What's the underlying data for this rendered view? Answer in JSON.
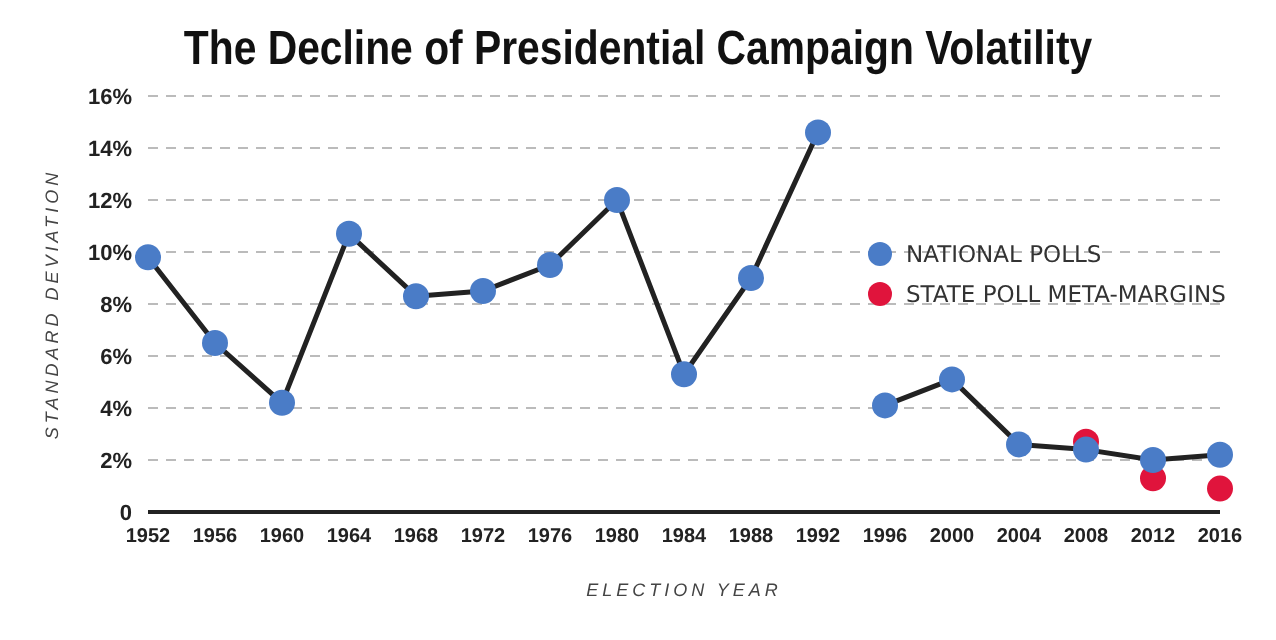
{
  "chart_data": {
    "type": "line",
    "title": "The Decline of Presidential Campaign Volatility",
    "xlabel": "ELECTION YEAR",
    "ylabel": "STANDARD DEVIATION",
    "categories": [
      "1952",
      "1956",
      "1960",
      "1964",
      "1968",
      "1972",
      "1976",
      "1980",
      "1984",
      "1988",
      "1992",
      "1996",
      "2000",
      "2004",
      "2008",
      "2012",
      "2016"
    ],
    "series": [
      {
        "name": "NATIONAL POLLS",
        "color": "#4a7cc7",
        "values": [
          9.8,
          6.5,
          4.2,
          10.7,
          8.3,
          8.5,
          9.5,
          12.0,
          5.3,
          9.0,
          14.6,
          null,
          null,
          null,
          null,
          null,
          null
        ]
      },
      {
        "name": "STATE POLL META-MARGINS",
        "type": "scatter",
        "color": "#e0143c",
        "values": [
          null,
          null,
          null,
          null,
          null,
          null,
          null,
          null,
          null,
          null,
          null,
          null,
          null,
          null,
          2.7,
          1.3,
          0.9
        ]
      },
      {
        "color": "#4a7cc7",
        "values": [
          null,
          null,
          null,
          null,
          null,
          null,
          null,
          null,
          null,
          null,
          null,
          4.1,
          5.1,
          2.6,
          2.4,
          2.0,
          2.2
        ]
      }
    ],
    "ylim": [
      0,
      16
    ],
    "yticks": [
      {
        "value": 0,
        "label": "0"
      },
      {
        "value": 2,
        "label": "2%"
      },
      {
        "value": 4,
        "label": "4%"
      },
      {
        "value": 6,
        "label": "6%"
      },
      {
        "value": 8,
        "label": "8%"
      },
      {
        "value": 10,
        "label": "10%"
      },
      {
        "value": 12,
        "label": "12%"
      },
      {
        "value": 14,
        "label": "14%"
      },
      {
        "value": 16,
        "label": "16%"
      }
    ],
    "grid": "y",
    "legend": "right",
    "marker": "circle"
  }
}
